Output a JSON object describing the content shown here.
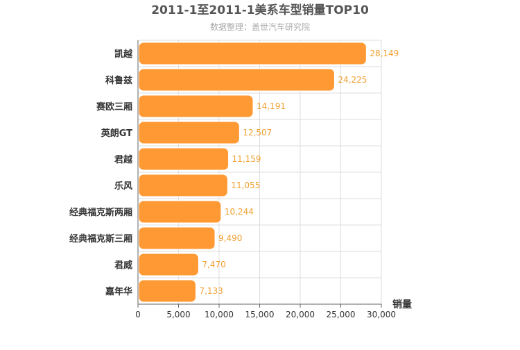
{
  "chart_data": {
    "type": "bar",
    "orientation": "horizontal",
    "title": "2011-1至2011-1美系车型销量TOP10",
    "subtitle": "数据整理：盖世汽车研究院",
    "xlabel": "销量",
    "ylabel": "",
    "categories": [
      "凯越",
      "科鲁兹",
      "赛欧三厢",
      "英朗GT",
      "君越",
      "乐风",
      "经典福克斯两厢",
      "经典福克斯三厢",
      "君威",
      "嘉年华"
    ],
    "values": [
      28149,
      24225,
      14191,
      12507,
      11159,
      11055,
      10244,
      9490,
      7470,
      7133
    ],
    "value_labels": [
      "28,149",
      "24,225",
      "14,191",
      "12,507",
      "11,159",
      "11,055",
      "10,244",
      "9,490",
      "7,470",
      "7,133"
    ],
    "xlim": [
      0,
      30000
    ],
    "x_ticks": [
      0,
      5000,
      10000,
      15000,
      20000,
      25000,
      30000
    ],
    "x_tick_labels": [
      "0",
      "5,000",
      "10,000",
      "15,000",
      "20,000",
      "25,000",
      "30,000"
    ],
    "grid": true,
    "legend": "none",
    "colors": {
      "bar": "#ff9933",
      "bar_stroke": "#ffffff",
      "value_label": "#f0a030",
      "title": "#555555",
      "subtitle": "#aaaaaa",
      "grid": "#dddddd",
      "axis": "#666666",
      "category_label": "#333333"
    }
  }
}
